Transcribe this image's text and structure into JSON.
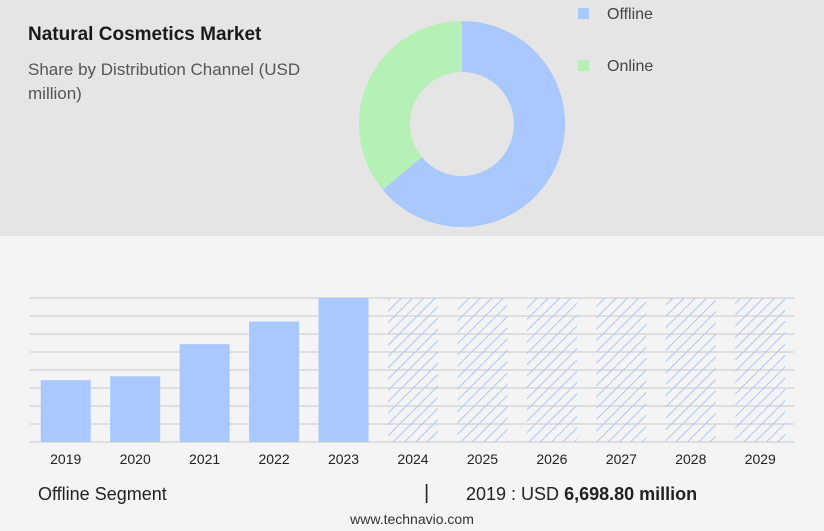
{
  "header": {
    "title": "Natural Cosmetics Market",
    "subtitle": "Share by Distribution Channel (USD million)"
  },
  "colors": {
    "offline": "#a9c8ff",
    "online": "#b5f0b4",
    "hatch": "#a9c8ff"
  },
  "chart_data": [
    {
      "type": "pie",
      "style": "donut",
      "legend_position": "top-right",
      "slices": [
        {
          "label": "Offline",
          "value": 64
        },
        {
          "label": "Online",
          "value": 36
        }
      ]
    },
    {
      "type": "bar",
      "categories": [
        "2019",
        "2020",
        "2021",
        "2022",
        "2023",
        "2024",
        "2025",
        "2026",
        "2027",
        "2028",
        "2029"
      ],
      "values": [
        6698.8,
        7120,
        10600,
        13050,
        15600,
        15600,
        15600,
        15600,
        15600,
        15600,
        15600
      ],
      "forecast_from": "2024",
      "ylim": [
        0,
        15600
      ],
      "grid": true,
      "y_tick_labels_shown": false
    }
  ],
  "footer": {
    "segment": "Offline Segment",
    "separator": "|",
    "year_label": "2019 : USD",
    "value": "6,698.80 million",
    "website": "www.technavio.com"
  }
}
